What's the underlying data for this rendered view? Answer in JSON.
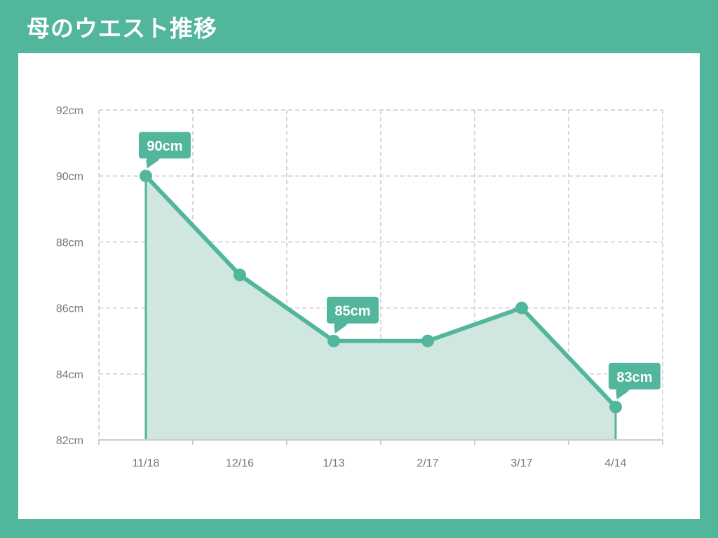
{
  "title": "母のウエスト推移",
  "colors": {
    "accent": "#52b69c",
    "fill": "#cfe7df",
    "grid": "#cccccc",
    "axis": "#cccccc",
    "tick_text": "#777777",
    "background": "#ffffff"
  },
  "chart_data": {
    "type": "area",
    "x": [
      "11/18",
      "12/16",
      "1/13",
      "2/17",
      "3/17",
      "4/14"
    ],
    "series": [
      {
        "values": [
          90,
          87,
          85,
          85,
          86,
          83
        ]
      }
    ],
    "y_unit": "cm",
    "ylim": [
      82,
      92
    ],
    "yticks": [
      82,
      84,
      86,
      88,
      90,
      92
    ],
    "ytick_labels": [
      "82cm",
      "84cm",
      "86cm",
      "88cm",
      "90cm",
      "92cm"
    ],
    "annotations": [
      {
        "x": "11/18",
        "y": 90,
        "text": "90cm"
      },
      {
        "x": "1/13",
        "y": 85,
        "text": "85cm"
      },
      {
        "x": "4/14",
        "y": 83,
        "text": "83cm"
      }
    ],
    "grid": true,
    "grid_style": "dashed",
    "legend": "none"
  }
}
